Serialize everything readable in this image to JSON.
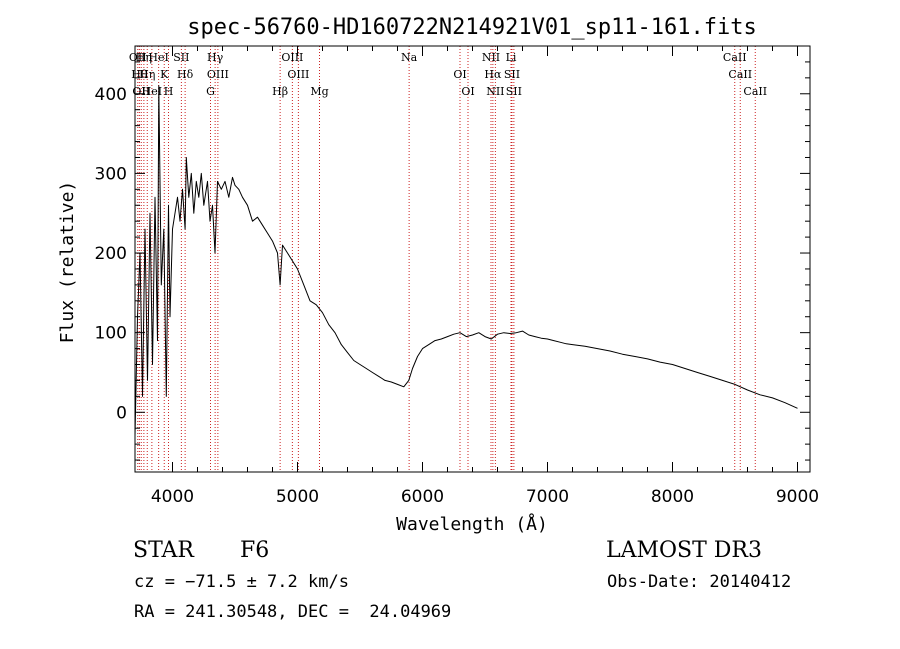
{
  "chart_data": {
    "type": "line",
    "title": "spec-56760-HD160722N214921V01_sp11-161.fits",
    "xlabel": "Wavelength (Å)",
    "ylabel": "Flux (relative)",
    "xlim": [
      3700,
      9100
    ],
    "ylim": [
      -75,
      460
    ],
    "xticks": [
      4000,
      5000,
      6000,
      7000,
      8000,
      9000
    ],
    "yticks": [
      0,
      100,
      200,
      300,
      400
    ],
    "grid": false,
    "series": [
      {
        "color": "#000000",
        "x": [
          3700,
          3720,
          3740,
          3760,
          3780,
          3800,
          3820,
          3840,
          3860,
          3880,
          3890,
          3910,
          3930,
          3950,
          3968,
          3980,
          4000,
          4020,
          4040,
          4060,
          4080,
          4101,
          4110,
          4130,
          4150,
          4170,
          4190,
          4210,
          4230,
          4250,
          4280,
          4300,
          4320,
          4340,
          4360,
          4390,
          4420,
          4450,
          4480,
          4500,
          4530,
          4560,
          4600,
          4640,
          4680,
          4720,
          4760,
          4800,
          4840,
          4861,
          4880,
          4920,
          4960,
          5000,
          5050,
          5100,
          5150,
          5200,
          5250,
          5300,
          5350,
          5400,
          5450,
          5500,
          5550,
          5600,
          5650,
          5700,
          5750,
          5800,
          5850,
          5890,
          5920,
          5960,
          6000,
          6050,
          6100,
          6150,
          6200,
          6250,
          6300,
          6350,
          6400,
          6450,
          6500,
          6550,
          6600,
          6650,
          6700,
          6750,
          6800,
          6850,
          6900,
          6950,
          7000,
          7050,
          7100,
          7150,
          7200,
          7300,
          7400,
          7500,
          7600,
          7700,
          7800,
          7900,
          8000,
          8100,
          8200,
          8300,
          8400,
          8500,
          8600,
          8700,
          8800,
          8900,
          9000
        ],
        "y": [
          -30,
          120,
          200,
          20,
          230,
          40,
          250,
          60,
          270,
          90,
          410,
          160,
          230,
          20,
          260,
          120,
          230,
          250,
          270,
          240,
          280,
          230,
          320,
          270,
          300,
          250,
          290,
          270,
          300,
          260,
          290,
          240,
          260,
          200,
          290,
          280,
          290,
          270,
          295,
          285,
          280,
          270,
          260,
          240,
          245,
          235,
          225,
          215,
          200,
          160,
          210,
          200,
          190,
          180,
          160,
          140,
          135,
          125,
          110,
          100,
          85,
          75,
          65,
          60,
          55,
          50,
          45,
          40,
          38,
          35,
          32,
          40,
          55,
          70,
          80,
          85,
          90,
          92,
          95,
          98,
          100,
          95,
          97,
          100,
          95,
          92,
          98,
          100,
          99,
          100,
          102,
          97,
          95,
          93,
          92,
          90,
          88,
          86,
          85,
          83,
          80,
          77,
          73,
          70,
          67,
          63,
          60,
          55,
          50,
          45,
          40,
          35,
          28,
          22,
          18,
          12,
          5
        ]
      }
    ],
    "lines": [
      {
        "x": 3722,
        "label": "OII"
      },
      {
        "x": 3735,
        "label": "Hθ"
      },
      {
        "x": 3750,
        "label": "OII"
      },
      {
        "x": 3771,
        "label": "Hη"
      },
      {
        "x": 3798,
        "label": "Hη"
      },
      {
        "x": 3835,
        "label": "HeI"
      },
      {
        "x": 3889,
        "label": "HeI"
      },
      {
        "x": 3934,
        "label": "K"
      },
      {
        "x": 3968,
        "label": "H"
      },
      {
        "x": 4071,
        "label": "SII"
      },
      {
        "x": 4101,
        "label": "Hδ"
      },
      {
        "x": 4304,
        "label": "G"
      },
      {
        "x": 4341,
        "label": "Hγ"
      },
      {
        "x": 4363,
        "label": "OIII"
      },
      {
        "x": 4861,
        "label": "Hβ"
      },
      {
        "x": 4959,
        "label": "OIII"
      },
      {
        "x": 5007,
        "label": "OIII"
      },
      {
        "x": 5176,
        "label": "Mg"
      },
      {
        "x": 5893,
        "label": "Na"
      },
      {
        "x": 6300,
        "label": "OI"
      },
      {
        "x": 6364,
        "label": "OI"
      },
      {
        "x": 6548,
        "label": "NII"
      },
      {
        "x": 6563,
        "label": "Hα"
      },
      {
        "x": 6583,
        "label": "NII"
      },
      {
        "x": 6708,
        "label": "Li"
      },
      {
        "x": 6716,
        "label": "SII"
      },
      {
        "x": 6731,
        "label": "SII"
      },
      {
        "x": 8498,
        "label": "CaII"
      },
      {
        "x": 8542,
        "label": "CaII"
      },
      {
        "x": 8662,
        "label": "CaII"
      }
    ]
  },
  "info": {
    "class_label": "STAR",
    "subclass": "F6",
    "cz": "cz = −71.5 ± 7.2 km/s",
    "coords": "RA = 241.30548, DEC =  24.04969",
    "survey": "LAMOST DR3",
    "obs_date": "Obs-Date: 20140412"
  }
}
